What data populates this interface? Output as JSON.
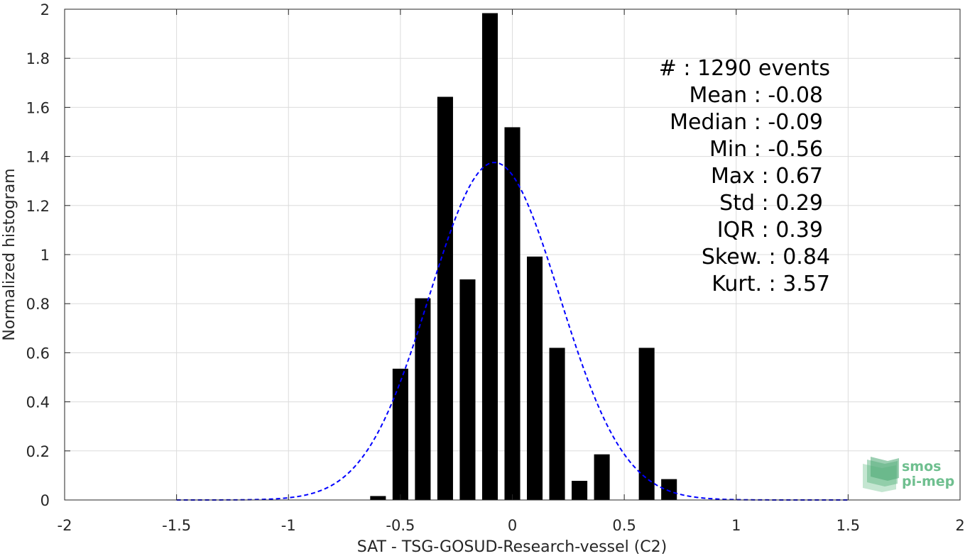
{
  "chart_data": {
    "type": "bar",
    "xlabel": "SAT - TSG-GOSUD-Research-vessel (C2)",
    "ylabel": "Normalized histogram",
    "xlim": [
      -2,
      2
    ],
    "ylim": [
      0,
      2
    ],
    "grid": true,
    "xticks": [
      -2,
      -1.5,
      -1,
      -0.5,
      0,
      0.5,
      1,
      1.5,
      2
    ],
    "xtick_labels": [
      "-2",
      "-1.5",
      "-1",
      "-0.5",
      "0",
      "0.5",
      "1",
      "1.5",
      "2"
    ],
    "yticks": [
      0,
      0.2,
      0.4,
      0.6,
      0.8,
      1,
      1.2,
      1.4,
      1.6,
      1.8,
      2
    ],
    "ytick_labels": [
      "0",
      "0.2",
      "0.4",
      "0.6",
      "0.8",
      "1",
      "1.2",
      "1.4",
      "1.6",
      "1.8",
      "2"
    ],
    "bar_color": "#000000",
    "bar_width": 0.07,
    "bars": [
      {
        "x": -0.6,
        "y": 0.016
      },
      {
        "x": -0.5,
        "y": 0.535
      },
      {
        "x": -0.4,
        "y": 0.822
      },
      {
        "x": -0.3,
        "y": 1.643
      },
      {
        "x": -0.2,
        "y": 0.899
      },
      {
        "x": -0.1,
        "y": 1.984
      },
      {
        "x": 0.0,
        "y": 1.519
      },
      {
        "x": 0.1,
        "y": 0.992
      },
      {
        "x": 0.2,
        "y": 0.62
      },
      {
        "x": 0.3,
        "y": 0.078
      },
      {
        "x": 0.4,
        "y": 0.186
      },
      {
        "x": 0.6,
        "y": 0.62
      },
      {
        "x": 0.7,
        "y": 0.085
      }
    ],
    "fit_curve": {
      "type": "normal",
      "style": "dashed",
      "color": "#0000ff",
      "mean": -0.08,
      "std": 0.29,
      "xrange": [
        -1.5,
        1.5
      ]
    },
    "annotation_lines": [
      "#  : 1290 events",
      "Mean : -0.08",
      "Median : -0.09",
      "Min : -0.56",
      "Max : 0.67",
      "Std : 0.29",
      "IQR : 0.39",
      "Skew. : 0.84",
      "Kurt. : 3.57"
    ]
  },
  "logo": {
    "line1": "smos",
    "line2": "pi-mep",
    "color": "#6fbf8f"
  }
}
